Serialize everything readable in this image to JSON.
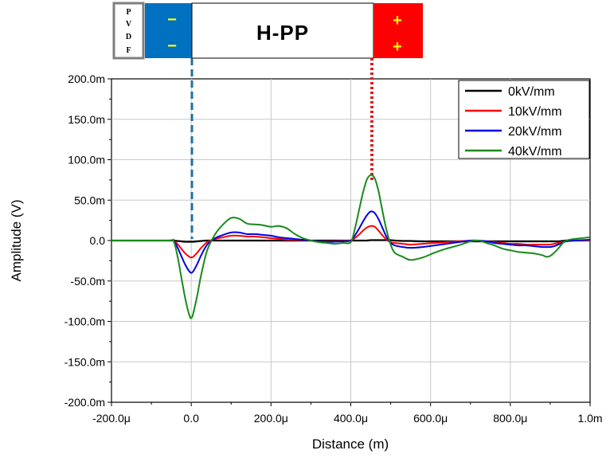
{
  "diagram": {
    "pvdf_letters": [
      "P",
      "V",
      "D",
      "F"
    ],
    "minus_signs": [
      "−",
      "−"
    ],
    "hpp_label": "H-PP",
    "plus_signs": [
      "+",
      "+"
    ],
    "colors": {
      "pvdf_fill": "#ffffff",
      "pvdf_border": "#7f7f7f",
      "negative_electrode": "#0070c0",
      "positive_electrode": "#ff0000",
      "sign": "#ffff00",
      "left_dashed_line": "#1f6f9f",
      "right_dotted_line": "#e31a1c"
    }
  },
  "chart_data": {
    "type": "line",
    "title": "",
    "xlabel": "Distance (m)",
    "ylabel": "Amplitude (V)",
    "xlim": [
      -200,
      1000
    ],
    "ylim": [
      -200,
      200
    ],
    "x_unit_note": "x values in micrometres, y values in millivolts",
    "x_tick_values": [
      -200,
      0,
      200,
      400,
      600,
      800,
      1000
    ],
    "x_tick_labels": [
      "-200.0μ",
      "0.0",
      "200.0μ",
      "400.0μ",
      "600.0μ",
      "800.0μ",
      "1.0m"
    ],
    "y_tick_values": [
      200,
      150,
      100,
      50,
      0,
      -50,
      -100,
      -150,
      -200
    ],
    "y_tick_labels": [
      "200.0m",
      "150.0m",
      "100.0m",
      "50.0m",
      "0.0",
      "-50.0m",
      "-100.0m",
      "-150.0m",
      "-200.0m"
    ],
    "grid": true,
    "legend_position": "top-right",
    "x": [
      -200,
      -60,
      -45,
      -35,
      -25,
      -15,
      -5,
      0,
      5,
      15,
      25,
      40,
      60,
      80,
      100,
      120,
      140,
      160,
      180,
      200,
      220,
      240,
      260,
      280,
      300,
      320,
      340,
      360,
      380,
      400,
      410,
      420,
      430,
      440,
      450,
      460,
      470,
      480,
      490,
      500,
      510,
      530,
      550,
      580,
      610,
      640,
      670,
      700,
      720,
      740,
      760,
      780,
      800,
      820,
      840,
      860,
      880,
      890,
      900,
      910,
      920,
      930,
      940,
      960,
      1000
    ],
    "series": [
      {
        "name": "0kV/mm",
        "color": "#000000",
        "values": [
          0,
          0,
          0,
          -0.5,
          -1,
          -1.5,
          -1.5,
          -1.5,
          -1.5,
          -1,
          -0.5,
          0,
          0,
          0,
          0,
          0,
          0,
          0,
          0,
          0,
          0,
          0,
          0,
          0,
          0,
          0,
          0,
          0,
          0,
          0,
          0,
          0,
          0,
          0,
          0.5,
          0.5,
          0.5,
          0.5,
          0.5,
          0.5,
          0,
          -0.5,
          -0.5,
          -1,
          -1,
          -1,
          -1,
          -1,
          -1,
          -1,
          -1,
          -1,
          -1,
          -1,
          -1,
          -1,
          -1,
          -1,
          -1,
          -1,
          -1,
          -0.5,
          0,
          0,
          0
        ]
      },
      {
        "name": "10kV/mm",
        "color": "#ff0000",
        "values": [
          0,
          0,
          0,
          -4,
          -10,
          -16,
          -20,
          -21,
          -20,
          -15,
          -9,
          -2,
          2,
          4,
          6,
          6,
          5,
          5,
          4,
          3,
          2,
          1,
          1,
          0.5,
          0,
          -1,
          -1,
          -1,
          -0.5,
          0,
          3,
          7,
          12,
          16,
          18,
          17,
          12,
          6,
          1,
          -2,
          -3,
          -4,
          -5,
          -4,
          -3,
          -2,
          -1,
          0,
          0,
          -1,
          -2,
          -3,
          -4,
          -4,
          -5,
          -5,
          -5,
          -5,
          -5,
          -4,
          -3,
          -2,
          -1,
          0,
          0
        ]
      },
      {
        "name": "20kV/mm",
        "color": "#0000e0",
        "values": [
          0,
          0,
          0,
          -8,
          -19,
          -30,
          -38,
          -40,
          -38,
          -29,
          -18,
          -5,
          3,
          7,
          10,
          10,
          8,
          8,
          7,
          6,
          4,
          3,
          2,
          1,
          0,
          -1,
          -1.5,
          -1.5,
          -1,
          0,
          6,
          14,
          23,
          31,
          36,
          34,
          26,
          15,
          4,
          -3,
          -6,
          -8,
          -9,
          -8,
          -6,
          -4,
          -2,
          0,
          0,
          -1,
          -3,
          -4,
          -5,
          -6,
          -6,
          -7,
          -8,
          -8,
          -8,
          -7,
          -5,
          -3,
          -1,
          0,
          1
        ]
      },
      {
        "name": "40kV/mm",
        "color": "#1a8a1a",
        "values": [
          0,
          0,
          0,
          -18,
          -45,
          -72,
          -92,
          -96,
          -90,
          -68,
          -42,
          -12,
          8,
          20,
          28,
          27,
          21,
          20,
          19,
          17,
          18,
          15,
          8,
          3,
          0,
          -2,
          -3,
          -4,
          -3,
          -2,
          14,
          36,
          58,
          75,
          81,
          77,
          60,
          35,
          12,
          -5,
          -15,
          -20,
          -24,
          -21,
          -15,
          -10,
          -6,
          -1,
          0,
          -3,
          -6,
          -10,
          -12,
          -14,
          -15,
          -16,
          -18,
          -20,
          -19,
          -15,
          -10,
          -4,
          0,
          2,
          4
        ]
      }
    ]
  }
}
